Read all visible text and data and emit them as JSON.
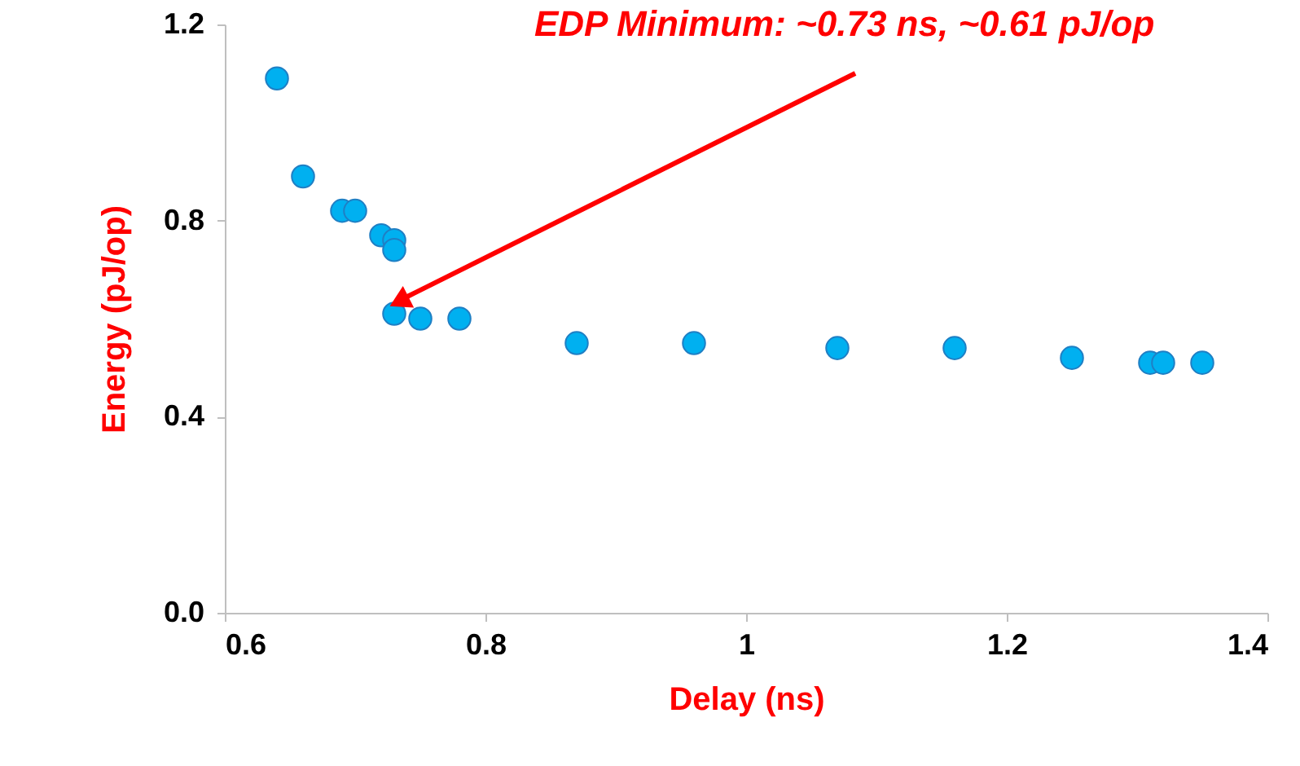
{
  "chart_data": {
    "type": "scatter",
    "xlabel": "Delay (ns)",
    "ylabel": "Energy (pJ/op)",
    "x": [
      0.64,
      0.66,
      0.69,
      0.7,
      0.72,
      0.73,
      0.73,
      0.73,
      0.75,
      0.78,
      0.87,
      0.96,
      1.07,
      1.16,
      1.25,
      1.31,
      1.32,
      1.35
    ],
    "series": [
      {
        "color": "#00b0f0",
        "values": [
          1.09,
          0.89,
          0.82,
          0.82,
          0.77,
          0.76,
          0.74,
          0.61,
          0.6,
          0.6,
          0.55,
          0.55,
          0.54,
          0.54,
          0.52,
          0.51,
          0.51,
          0.51
        ]
      }
    ],
    "xlim": [
      0.6,
      1.4
    ],
    "xticks": [
      0.6,
      0.8,
      {
        "value": 1,
        "label": "1"
      },
      1.2,
      1.4
    ],
    "ylim": [
      0,
      1.2
    ],
    "yticks": [
      {
        "value": 0,
        "label": "0.0"
      },
      0.4,
      0.8,
      1.2
    ],
    "grid": false,
    "marker": "circle",
    "annotations": [
      "EDP Minimum: ~0.73 ns, ~0.61 pJ/op"
    ]
  }
}
